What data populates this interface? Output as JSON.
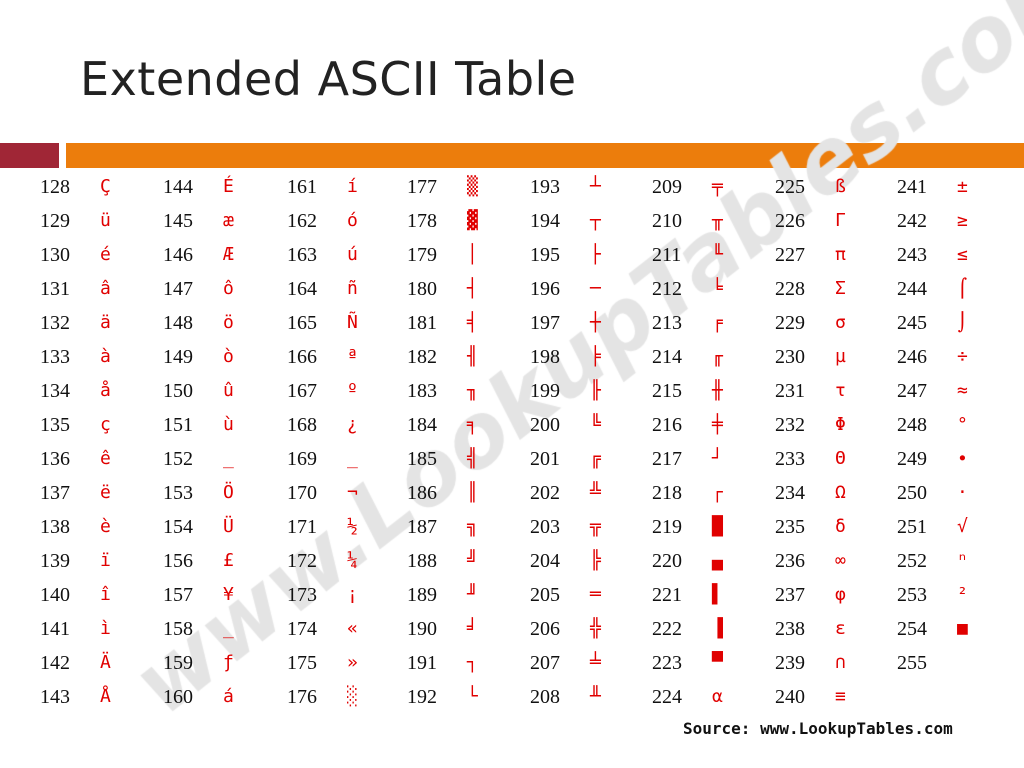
{
  "title": "Extended ASCII Table",
  "colors": {
    "accent_red": "#a02636",
    "accent_orange": "#ec7d0c",
    "glyph": "#e00000"
  },
  "watermark": "www.LookupTables.com",
  "source": "Source:  www.LookupTables.com",
  "columns": [
    [
      [
        "128",
        "Ç"
      ],
      [
        "129",
        "ü"
      ],
      [
        "130",
        "é"
      ],
      [
        "131",
        "â"
      ],
      [
        "132",
        "ä"
      ],
      [
        "133",
        "à"
      ],
      [
        "134",
        "å"
      ],
      [
        "135",
        "ç"
      ],
      [
        "136",
        "ê"
      ],
      [
        "137",
        "ë"
      ],
      [
        "138",
        "è"
      ],
      [
        "139",
        "ï"
      ],
      [
        "140",
        "î"
      ],
      [
        "141",
        "ì"
      ],
      [
        "142",
        "Ä"
      ],
      [
        "143",
        "Å"
      ]
    ],
    [
      [
        "144",
        "É"
      ],
      [
        "145",
        "æ"
      ],
      [
        "146",
        "Æ"
      ],
      [
        "147",
        "ô"
      ],
      [
        "148",
        "ö"
      ],
      [
        "149",
        "ò"
      ],
      [
        "150",
        "û"
      ],
      [
        "151",
        "ù"
      ],
      [
        "152",
        "_"
      ],
      [
        "153",
        "Ö"
      ],
      [
        "154",
        "Ü"
      ],
      [
        "156",
        "£"
      ],
      [
        "157",
        "¥"
      ],
      [
        "158",
        "_"
      ],
      [
        "159",
        "ƒ"
      ],
      [
        "160",
        "á"
      ]
    ],
    [
      [
        "161",
        "í"
      ],
      [
        "162",
        "ó"
      ],
      [
        "163",
        "ú"
      ],
      [
        "164",
        "ñ"
      ],
      [
        "165",
        "Ñ"
      ],
      [
        "166",
        "ª"
      ],
      [
        "167",
        "º"
      ],
      [
        "168",
        "¿"
      ],
      [
        "169",
        "_"
      ],
      [
        "170",
        "¬"
      ],
      [
        "171",
        "½"
      ],
      [
        "172",
        "¼"
      ],
      [
        "173",
        "¡"
      ],
      [
        "174",
        "«"
      ],
      [
        "175",
        "»"
      ],
      [
        "176",
        "░"
      ]
    ],
    [
      [
        "177",
        "▒"
      ],
      [
        "178",
        "▓"
      ],
      [
        "179",
        "│"
      ],
      [
        "180",
        "┤"
      ],
      [
        "181",
        "╡"
      ],
      [
        "182",
        "╢"
      ],
      [
        "183",
        "╖"
      ],
      [
        "184",
        "╕"
      ],
      [
        "185",
        "╣"
      ],
      [
        "186",
        "║"
      ],
      [
        "187",
        "╗"
      ],
      [
        "188",
        "╝"
      ],
      [
        "189",
        "╜"
      ],
      [
        "190",
        "╛"
      ],
      [
        "191",
        "┐"
      ],
      [
        "192",
        "└"
      ]
    ],
    [
      [
        "193",
        "┴"
      ],
      [
        "194",
        "┬"
      ],
      [
        "195",
        "├"
      ],
      [
        "196",
        "─"
      ],
      [
        "197",
        "┼"
      ],
      [
        "198",
        "╞"
      ],
      [
        "199",
        "╟"
      ],
      [
        "200",
        "╚"
      ],
      [
        "201",
        "╔"
      ],
      [
        "202",
        "╩"
      ],
      [
        "203",
        "╦"
      ],
      [
        "204",
        "╠"
      ],
      [
        "205",
        "═"
      ],
      [
        "206",
        "╬"
      ],
      [
        "207",
        "╧"
      ],
      [
        "208",
        "╨"
      ]
    ],
    [
      [
        "209",
        "╤"
      ],
      [
        "210",
        "╥"
      ],
      [
        "211",
        "╙"
      ],
      [
        "212",
        "╘"
      ],
      [
        "213",
        "╒"
      ],
      [
        "214",
        "╓"
      ],
      [
        "215",
        "╫"
      ],
      [
        "216",
        "╪"
      ],
      [
        "217",
        "┘"
      ],
      [
        "218",
        "┌"
      ],
      [
        "219",
        "█"
      ],
      [
        "220",
        "▄"
      ],
      [
        "221",
        "▌"
      ],
      [
        "222",
        "▐"
      ],
      [
        "223",
        "▀"
      ],
      [
        "224",
        "α"
      ]
    ],
    [
      [
        "225",
        "ß"
      ],
      [
        "226",
        "Γ"
      ],
      [
        "227",
        "π"
      ],
      [
        "228",
        "Σ"
      ],
      [
        "229",
        "σ"
      ],
      [
        "230",
        "µ"
      ],
      [
        "231",
        "τ"
      ],
      [
        "232",
        "Φ"
      ],
      [
        "233",
        "Θ"
      ],
      [
        "234",
        "Ω"
      ],
      [
        "235",
        "δ"
      ],
      [
        "236",
        "∞"
      ],
      [
        "237",
        "φ"
      ],
      [
        "238",
        "ε"
      ],
      [
        "239",
        "∩"
      ],
      [
        "240",
        "≡"
      ]
    ],
    [
      [
        "241",
        "±"
      ],
      [
        "242",
        "≥"
      ],
      [
        "243",
        "≤"
      ],
      [
        "244",
        "⌠"
      ],
      [
        "245",
        "⌡"
      ],
      [
        "246",
        "÷"
      ],
      [
        "247",
        "≈"
      ],
      [
        "248",
        "°"
      ],
      [
        "249",
        "∙"
      ],
      [
        "250",
        "·"
      ],
      [
        "251",
        "√"
      ],
      [
        "252",
        "ⁿ"
      ],
      [
        "253",
        "²"
      ],
      [
        "254",
        "■"
      ],
      [
        "255",
        ""
      ]
    ]
  ]
}
